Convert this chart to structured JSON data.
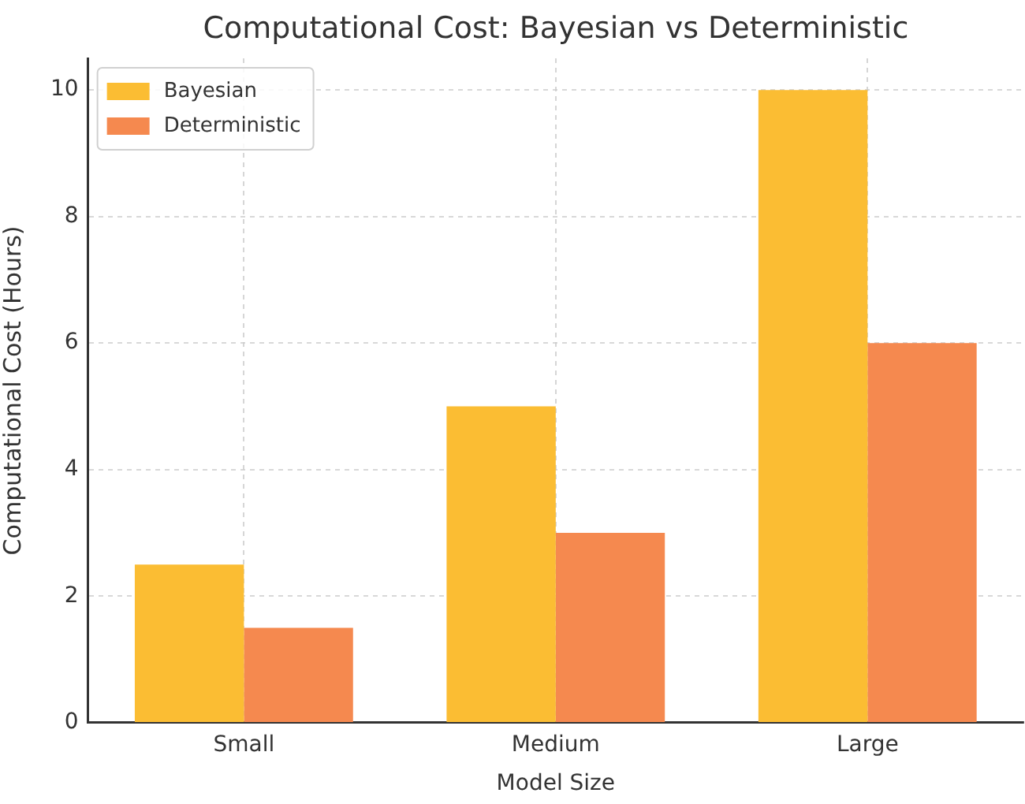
{
  "chart_data": {
    "type": "bar",
    "title": "Computational Cost: Bayesian vs Deterministic",
    "xlabel": "Model Size",
    "ylabel": "Computational Cost (Hours)",
    "categories": [
      "Small",
      "Medium",
      "Large"
    ],
    "series": [
      {
        "name": "Bayesian",
        "color": "#fbbd33",
        "values": [
          2.5,
          5,
          10
        ]
      },
      {
        "name": "Deterministic",
        "color": "#f5894f",
        "values": [
          1.5,
          3,
          6
        ]
      }
    ],
    "ylim": [
      0,
      10.5
    ],
    "yticks": [
      0,
      2,
      4,
      6,
      8,
      10
    ],
    "grid": true,
    "legend": "top left"
  }
}
